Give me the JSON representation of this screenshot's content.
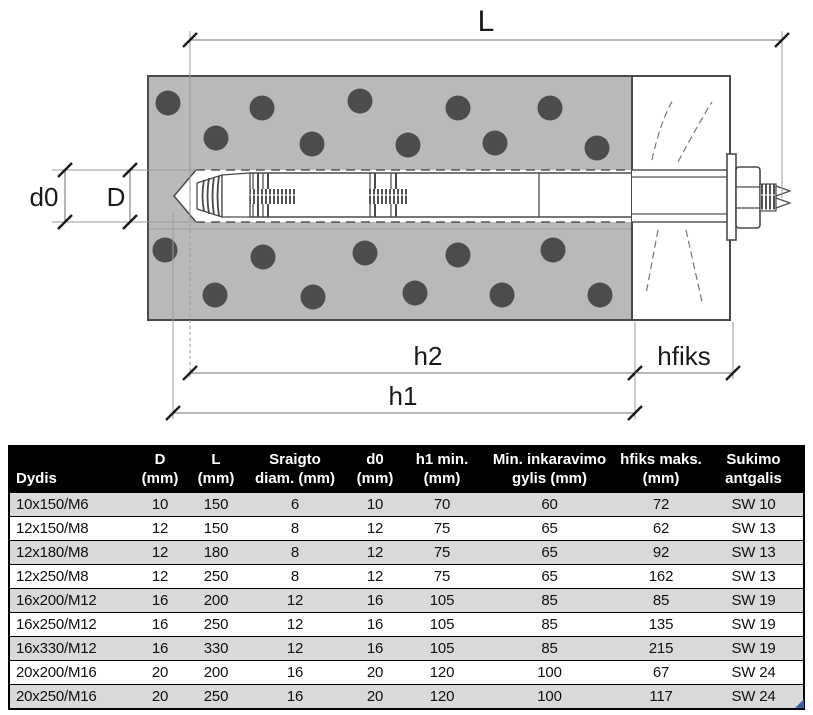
{
  "diagram": {
    "labels": {
      "total_length": "L",
      "hole_diameter": "d0",
      "anchor_diameter": "D",
      "h2": "h2",
      "h1": "h1",
      "hfiks": "hfiks"
    }
  },
  "table": {
    "columns": [
      {
        "line1": "",
        "line2": "Dydis"
      },
      {
        "line1": "D",
        "line2": "(mm)"
      },
      {
        "line1": "L",
        "line2": "(mm)"
      },
      {
        "line1": "Sraigto",
        "line2": "diam. (mm)"
      },
      {
        "line1": "d0",
        "line2": "(mm)"
      },
      {
        "line1": "h1 min.",
        "line2": "(mm)"
      },
      {
        "line1": "Min. inkaravimo",
        "line2": "gylis (mm)"
      },
      {
        "line1": "hfiks maks.",
        "line2": "(mm)"
      },
      {
        "line1": "Sukimo",
        "line2": "antgalis"
      }
    ],
    "rows": [
      [
        "10x150/M6",
        "10",
        "150",
        "6",
        "10",
        "70",
        "60",
        "72",
        "SW 10"
      ],
      [
        "12x150/M8",
        "12",
        "150",
        "8",
        "12",
        "75",
        "65",
        "62",
        "SW 13"
      ],
      [
        "12x180/M8",
        "12",
        "180",
        "8",
        "12",
        "75",
        "65",
        "92",
        "SW 13"
      ],
      [
        "12x250/M8",
        "12",
        "250",
        "8",
        "12",
        "75",
        "65",
        "162",
        "SW 13"
      ],
      [
        "16x200/M12",
        "16",
        "200",
        "12",
        "16",
        "105",
        "85",
        "85",
        "SW 19"
      ],
      [
        "16x250/M12",
        "16",
        "250",
        "12",
        "16",
        "105",
        "85",
        "135",
        "SW 19"
      ],
      [
        "16x330/M12",
        "16",
        "330",
        "12",
        "16",
        "105",
        "85",
        "215",
        "SW 19"
      ],
      [
        "20x200/M16",
        "20",
        "200",
        "16",
        "20",
        "120",
        "100",
        "67",
        "SW 24"
      ],
      [
        "20x250/M16",
        "20",
        "250",
        "16",
        "20",
        "120",
        "100",
        "117",
        "SW 24"
      ]
    ]
  },
  "colors": {
    "concrete": "#b9b9b9",
    "aggregate": "#4d4d4d",
    "header_bg": "#000000",
    "header_text": "#ffffff",
    "row_alt": "#d9d9d9",
    "corner_handle": "#3f5fae"
  }
}
